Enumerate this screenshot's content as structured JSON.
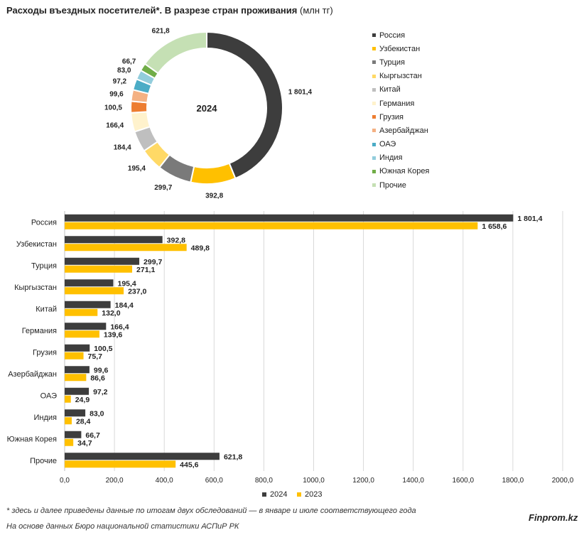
{
  "title": {
    "main": "Расходы въездных посетителей*. В разрезе стран проживания",
    "unit": "(млн тг)"
  },
  "colors": {
    "2024": "#3d3d3d",
    "2023": "#ffc000",
    "slices": [
      "#3d3d3d",
      "#ffc000",
      "#7a7a7a",
      "#ffd966",
      "#bfbfbf",
      "#fff2cc",
      "#ed7d31",
      "#f4b183",
      "#4bacc6",
      "#92cddc",
      "#70ad47",
      "#c5e0b4"
    ]
  },
  "footnote": "* здесь и далее приведены данные по итогам двух обследований — в январе и июле соответствующего года",
  "source": "На основе данных Бюро национальной статистики АСПиР РК",
  "brand": "Finprom.kz",
  "chart_data": [
    {
      "type": "pie",
      "donut": true,
      "center_label": "2024",
      "labels": [
        "Россия",
        "Узбекистан",
        "Турция",
        "Кыргызстан",
        "Китай",
        "Германия",
        "Грузия",
        "Азербайджан",
        "ОАЭ",
        "Индия",
        "Южная Корея",
        "Прочие"
      ],
      "values": [
        1801.4,
        392.8,
        299.7,
        195.4,
        184.4,
        166.4,
        100.5,
        99.6,
        97.2,
        83.0,
        66.7,
        621.8
      ],
      "value_labels": [
        "1 801,4",
        "392,8",
        "299,7",
        "195,4",
        "184,4",
        "166,4",
        "100,5",
        "99,6",
        "97,2",
        "83,0",
        "66,7",
        "621,8"
      ],
      "legend_position": "right"
    },
    {
      "type": "bar",
      "orientation": "horizontal",
      "categories": [
        "Россия",
        "Узбекистан",
        "Турция",
        "Кыргызстан",
        "Китай",
        "Германия",
        "Грузия",
        "Азербайджан",
        "ОАЭ",
        "Индия",
        "Южная Корея",
        "Прочие"
      ],
      "series": [
        {
          "name": "2024",
          "values": [
            1801.4,
            392.8,
            299.7,
            195.4,
            184.4,
            166.4,
            100.5,
            99.6,
            97.2,
            83.0,
            66.7,
            621.8
          ],
          "value_labels": [
            "1 801,4",
            "392,8",
            "299,7",
            "195,4",
            "184,4",
            "166,4",
            "100,5",
            "99,6",
            "97,2",
            "83,0",
            "66,7",
            "621,8"
          ]
        },
        {
          "name": "2023",
          "values": [
            1658.6,
            489.8,
            271.1,
            237.0,
            132.0,
            139.6,
            75.7,
            86.6,
            24.9,
            28.4,
            34.7,
            445.6
          ],
          "value_labels": [
            "1 658,6",
            "489,8",
            "271,1",
            "237,0",
            "132,0",
            "139,6",
            "75,7",
            "86,6",
            "24,9",
            "28,4",
            "34,7",
            "445,6"
          ]
        }
      ],
      "xlim": [
        0,
        2000
      ],
      "xticks": [
        0,
        200,
        400,
        600,
        800,
        1000,
        1200,
        1400,
        1600,
        1800,
        2000
      ],
      "xtick_labels": [
        "0,0",
        "200,0",
        "400,0",
        "600,0",
        "800,0",
        "1000,0",
        "1200,0",
        "1400,0",
        "1600,0",
        "1800,0",
        "2000,0"
      ],
      "grid": true,
      "legend_position": "bottom"
    }
  ]
}
